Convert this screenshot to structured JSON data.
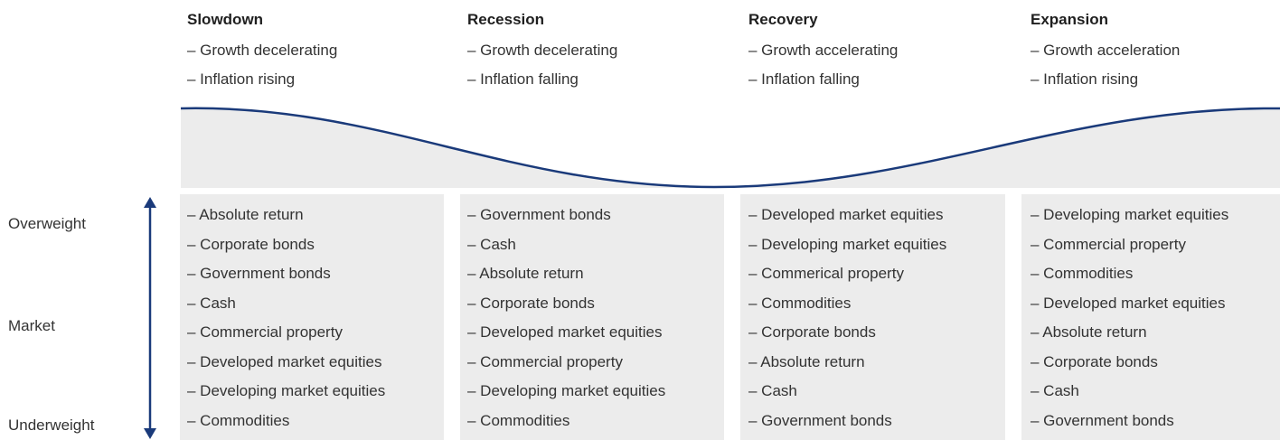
{
  "axis": {
    "top": "Overweight",
    "middle": "Market",
    "bottom": "Underweight"
  },
  "phases": [
    {
      "title": "Slowdown",
      "traits": [
        "– Growth decelerating",
        "– Inflation rising"
      ],
      "assets": [
        "– Absolute return",
        "– Corporate bonds",
        "– Government bonds",
        "– Cash",
        "– Commercial property",
        "– Developed market equities",
        "– Developing market equities",
        "– Commodities"
      ]
    },
    {
      "title": "Recession",
      "traits": [
        "– Growth decelerating",
        "– Inflation falling"
      ],
      "assets": [
        "– Government bonds",
        "– Cash",
        "– Absolute return",
        "– Corporate bonds",
        "– Developed market equities",
        "– Commercial property",
        "– Developing market equities",
        "– Commodities"
      ]
    },
    {
      "title": "Recovery",
      "traits": [
        "– Growth accelerating",
        "– Inflation falling"
      ],
      "assets": [
        "– Developed market equities",
        "– Developing market equities",
        "– Commerical property",
        "– Commodities",
        "– Corporate bonds",
        "– Absolute return",
        "– Cash",
        "– Government bonds"
      ]
    },
    {
      "title": "Expansion",
      "traits": [
        "– Growth acceleration",
        "– Inflation rising"
      ],
      "assets": [
        "– Developing market equities",
        "– Commercial property",
        "– Commodities",
        "– Developed market equities",
        "– Absolute return",
        "– Corporate bonds",
        "– Cash",
        "– Government bonds"
      ]
    }
  ]
}
